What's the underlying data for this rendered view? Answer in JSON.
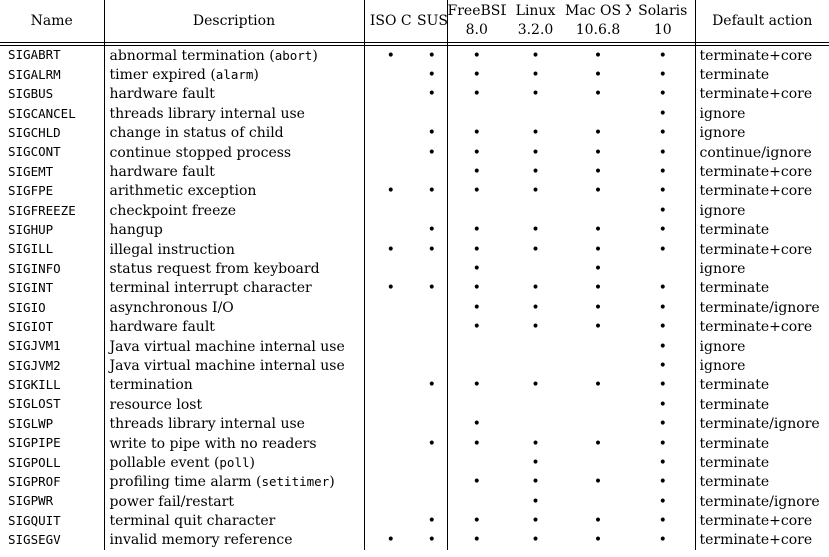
{
  "headers": {
    "name": "Name",
    "description": "Description",
    "iso_c": "ISO C",
    "sus": "SUS",
    "freebsd": "FreeBSD",
    "freebsd_ver": "8.0",
    "linux": "Linux",
    "linux_ver": "3.2.0",
    "macos": "Mac OS X",
    "macos_ver": "10.6.8",
    "solaris": "Solaris",
    "solaris_ver": "10",
    "action": "Default action"
  },
  "mark_symbol": "•",
  "rows": [
    {
      "name": "SIGABRT",
      "desc": "abnormal termination (",
      "code": "abort",
      "desc_end": ")",
      "iso": true,
      "sus": true,
      "fbsd": true,
      "linux": true,
      "mac": true,
      "sol": true,
      "action": "terminate+core"
    },
    {
      "name": "SIGALRM",
      "desc": "timer expired (",
      "code": "alarm",
      "desc_end": ")",
      "iso": false,
      "sus": true,
      "fbsd": true,
      "linux": true,
      "mac": true,
      "sol": true,
      "action": "terminate"
    },
    {
      "name": "SIGBUS",
      "desc": "hardware fault",
      "iso": false,
      "sus": true,
      "fbsd": true,
      "linux": true,
      "mac": true,
      "sol": true,
      "action": "terminate+core"
    },
    {
      "name": "SIGCANCEL",
      "desc": "threads library internal use",
      "iso": false,
      "sus": false,
      "fbsd": false,
      "linux": false,
      "mac": false,
      "sol": true,
      "action": "ignore"
    },
    {
      "name": "SIGCHLD",
      "desc": "change in status of child",
      "iso": false,
      "sus": true,
      "fbsd": true,
      "linux": true,
      "mac": true,
      "sol": true,
      "action": "ignore"
    },
    {
      "name": "SIGCONT",
      "desc": "continue stopped process",
      "iso": false,
      "sus": true,
      "fbsd": true,
      "linux": true,
      "mac": true,
      "sol": true,
      "action": "continue/ignore"
    },
    {
      "name": "SIGEMT",
      "desc": "hardware fault",
      "iso": false,
      "sus": false,
      "fbsd": true,
      "linux": true,
      "mac": true,
      "sol": true,
      "action": "terminate+core"
    },
    {
      "name": "SIGFPE",
      "desc": "arithmetic exception",
      "iso": true,
      "sus": true,
      "fbsd": true,
      "linux": true,
      "mac": true,
      "sol": true,
      "action": "terminate+core"
    },
    {
      "name": "SIGFREEZE",
      "desc": "checkpoint freeze",
      "iso": false,
      "sus": false,
      "fbsd": false,
      "linux": false,
      "mac": false,
      "sol": true,
      "action": "ignore"
    },
    {
      "name": "SIGHUP",
      "desc": "hangup",
      "iso": false,
      "sus": true,
      "fbsd": true,
      "linux": true,
      "mac": true,
      "sol": true,
      "action": "terminate"
    },
    {
      "name": "SIGILL",
      "desc": "illegal instruction",
      "iso": true,
      "sus": true,
      "fbsd": true,
      "linux": true,
      "mac": true,
      "sol": true,
      "action": "terminate+core"
    },
    {
      "name": "SIGINFO",
      "desc": "status request from keyboard",
      "iso": false,
      "sus": false,
      "fbsd": true,
      "linux": false,
      "mac": true,
      "sol": false,
      "action": "ignore"
    },
    {
      "name": "SIGINT",
      "desc": "terminal interrupt character",
      "iso": true,
      "sus": true,
      "fbsd": true,
      "linux": true,
      "mac": true,
      "sol": true,
      "action": "terminate"
    },
    {
      "name": "SIGIO",
      "desc": "asynchronous I/O",
      "iso": false,
      "sus": false,
      "fbsd": true,
      "linux": true,
      "mac": true,
      "sol": true,
      "action": "terminate/ignore"
    },
    {
      "name": "SIGIOT",
      "desc": "hardware fault",
      "iso": false,
      "sus": false,
      "fbsd": true,
      "linux": true,
      "mac": true,
      "sol": true,
      "action": "terminate+core"
    },
    {
      "name": "SIGJVM1",
      "desc": "Java virtual machine internal use",
      "iso": false,
      "sus": false,
      "fbsd": false,
      "linux": false,
      "mac": false,
      "sol": true,
      "action": "ignore"
    },
    {
      "name": "SIGJVM2",
      "desc": "Java virtual machine internal use",
      "iso": false,
      "sus": false,
      "fbsd": false,
      "linux": false,
      "mac": false,
      "sol": true,
      "action": "ignore"
    },
    {
      "name": "SIGKILL",
      "desc": "termination",
      "iso": false,
      "sus": true,
      "fbsd": true,
      "linux": true,
      "mac": true,
      "sol": true,
      "action": "terminate"
    },
    {
      "name": "SIGLOST",
      "desc": "resource lost",
      "iso": false,
      "sus": false,
      "fbsd": false,
      "linux": false,
      "mac": false,
      "sol": true,
      "action": "terminate"
    },
    {
      "name": "SIGLWP",
      "desc": "threads library internal use",
      "iso": false,
      "sus": false,
      "fbsd": true,
      "linux": false,
      "mac": false,
      "sol": true,
      "action": "terminate/ignore"
    },
    {
      "name": "SIGPIPE",
      "desc": "write to pipe with no readers",
      "iso": false,
      "sus": true,
      "fbsd": true,
      "linux": true,
      "mac": true,
      "sol": true,
      "action": "terminate"
    },
    {
      "name": "SIGPOLL",
      "desc": "pollable event (",
      "code": "poll",
      "desc_end": ")",
      "iso": false,
      "sus": false,
      "fbsd": false,
      "linux": true,
      "mac": false,
      "sol": true,
      "action": "terminate"
    },
    {
      "name": "SIGPROF",
      "desc": "profiling time alarm (",
      "code": "setitimer",
      "desc_end": ")",
      "iso": false,
      "sus": false,
      "fbsd": true,
      "linux": true,
      "mac": true,
      "sol": true,
      "action": "terminate"
    },
    {
      "name": "SIGPWR",
      "desc": "power fail/restart",
      "iso": false,
      "sus": false,
      "fbsd": false,
      "linux": true,
      "mac": false,
      "sol": true,
      "action": "terminate/ignore"
    },
    {
      "name": "SIGQUIT",
      "desc": "terminal quit character",
      "iso": false,
      "sus": true,
      "fbsd": true,
      "linux": true,
      "mac": true,
      "sol": true,
      "action": "terminate+core"
    },
    {
      "name": "SIGSEGV",
      "desc": "invalid memory reference",
      "iso": true,
      "sus": true,
      "fbsd": true,
      "linux": true,
      "mac": true,
      "sol": true,
      "action": "terminate+core"
    }
  ]
}
